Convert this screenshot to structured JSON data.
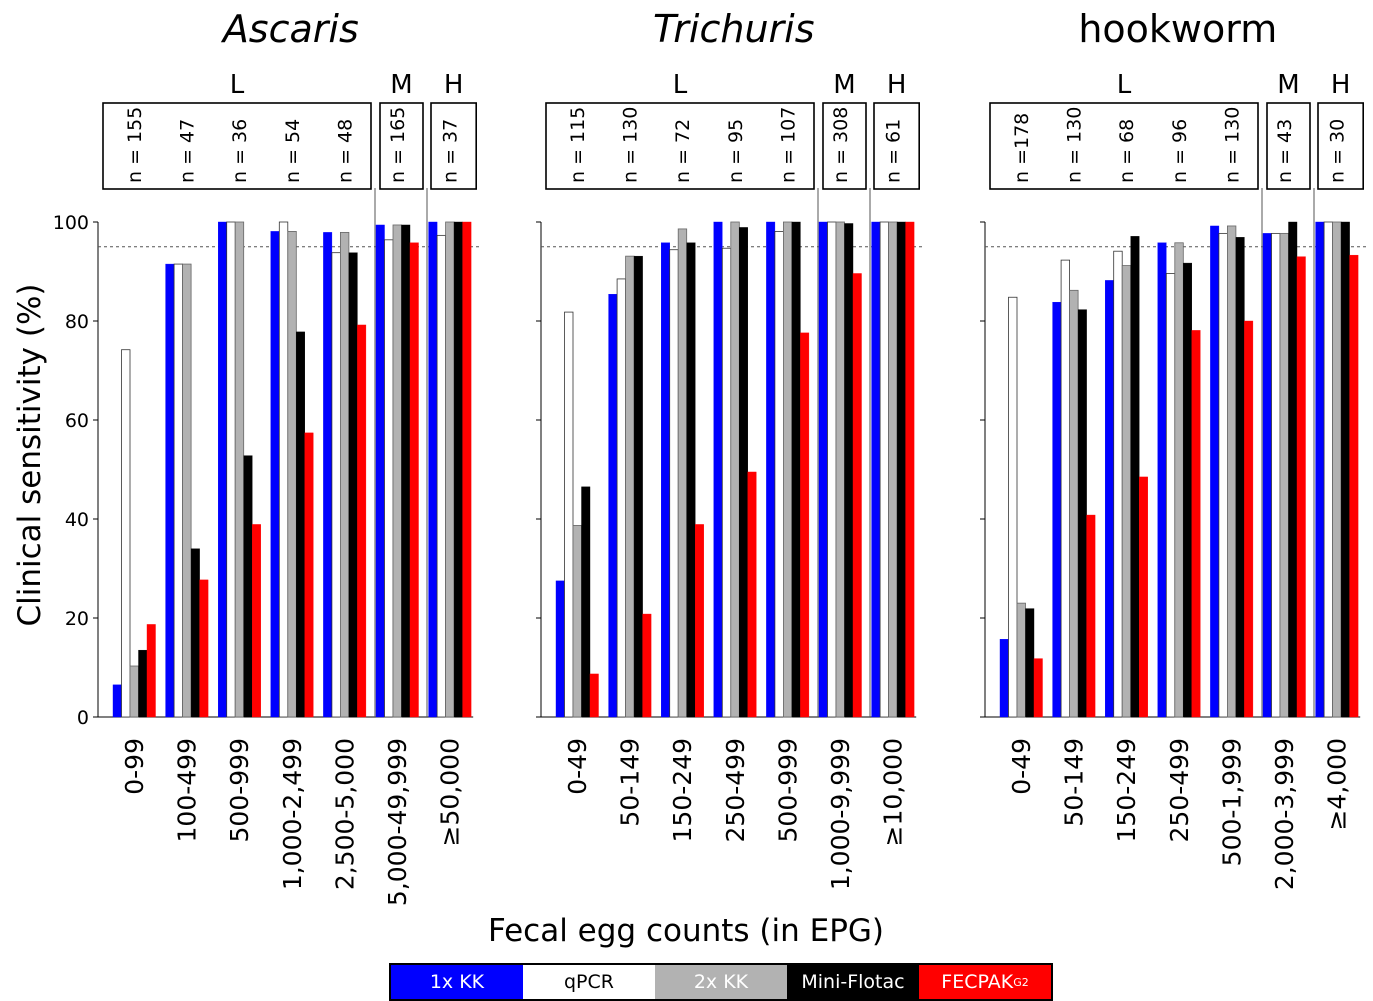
{
  "chart_data": [
    {
      "type": "bar",
      "title": "Ascaris",
      "title_italic": true,
      "categories": [
        "0-99",
        "100-499",
        "500-999",
        "1,000-2,499",
        "2,500-5,000",
        "5,000-49,999",
        "≥50,000"
      ],
      "sample_sizes": [
        "n = 155",
        "n = 47",
        "n = 36",
        "n = 54",
        "n = 48",
        "n = 165",
        "n = 37"
      ],
      "intensity_groups": [
        {
          "label": "L",
          "categories": [
            0,
            1,
            2,
            3,
            4
          ]
        },
        {
          "label": "M",
          "categories": [
            5
          ]
        },
        {
          "label": "H",
          "categories": [
            6
          ]
        }
      ],
      "series": [
        {
          "name": "1x KK",
          "values": [
            6.5,
            91.5,
            100,
            98.1,
            97.9,
            99.4,
            100
          ]
        },
        {
          "name": "qPCR",
          "values": [
            74.2,
            91.5,
            100,
            100,
            93.8,
            96.4,
            97.3
          ]
        },
        {
          "name": "2x KK",
          "values": [
            10.3,
            91.5,
            100,
            98.1,
            97.9,
            99.4,
            100
          ]
        },
        {
          "name": "Mini-Flotac",
          "values": [
            13.5,
            34.0,
            52.8,
            77.8,
            93.8,
            99.4,
            100
          ]
        },
        {
          "name": "FECPAK",
          "values": [
            18.7,
            27.7,
            38.9,
            57.4,
            79.2,
            95.8,
            100
          ]
        }
      ],
      "ylim": [
        0,
        100
      ],
      "reference_line": 95
    },
    {
      "type": "bar",
      "title": "Trichuris",
      "title_italic": true,
      "categories": [
        "0-49",
        "50-149",
        "150-249",
        "250-499",
        "500-999",
        "1,000-9,999",
        "≥10,000"
      ],
      "sample_sizes": [
        "n = 115",
        "n = 130",
        "n = 72",
        "n = 95",
        "n = 107",
        "n = 308",
        "n = 61"
      ],
      "intensity_groups": [
        {
          "label": "L",
          "categories": [
            0,
            1,
            2,
            3,
            4
          ]
        },
        {
          "label": "M",
          "categories": [
            5
          ]
        },
        {
          "label": "H",
          "categories": [
            6
          ]
        }
      ],
      "series": [
        {
          "name": "1x KK",
          "values": [
            27.5,
            85.4,
            95.8,
            100,
            100,
            100,
            100
          ]
        },
        {
          "name": "qPCR",
          "values": [
            81.8,
            88.5,
            94.4,
            94.7,
            98.1,
            100,
            100
          ]
        },
        {
          "name": "2x KK",
          "values": [
            38.7,
            93.1,
            98.6,
            100,
            100,
            100,
            100
          ]
        },
        {
          "name": "Mini-Flotac",
          "values": [
            46.5,
            93.1,
            95.8,
            98.9,
            100,
            99.7,
            100
          ]
        },
        {
          "name": "FECPAK",
          "values": [
            8.7,
            20.8,
            38.9,
            49.5,
            77.6,
            89.6,
            100
          ]
        }
      ],
      "ylim": [
        0,
        100
      ],
      "reference_line": 95
    },
    {
      "type": "bar",
      "title": "hookworm",
      "title_italic": false,
      "categories": [
        "0-49",
        "50-149",
        "150-249",
        "250-499",
        "500-1,999",
        "2,000-3,999",
        "≥4,000"
      ],
      "sample_sizes": [
        "n =178",
        "n = 130",
        "n = 68",
        "n = 96",
        "n = 130",
        "n = 43",
        "n = 30"
      ],
      "intensity_groups": [
        {
          "label": "L",
          "categories": [
            0,
            1,
            2,
            3,
            4
          ]
        },
        {
          "label": "M",
          "categories": [
            5
          ]
        },
        {
          "label": "H",
          "categories": [
            6
          ]
        }
      ],
      "series": [
        {
          "name": "1x KK",
          "values": [
            15.7,
            83.8,
            88.2,
            95.8,
            99.2,
            97.7,
            100
          ]
        },
        {
          "name": "qPCR",
          "values": [
            84.8,
            92.3,
            94.1,
            89.6,
            97.7,
            97.7,
            100
          ]
        },
        {
          "name": "2x KK",
          "values": [
            23.0,
            86.2,
            91.2,
            95.8,
            99.2,
            97.7,
            100
          ]
        },
        {
          "name": "Mini-Flotac",
          "values": [
            21.9,
            82.3,
            97.1,
            91.7,
            96.9,
            100,
            100
          ]
        },
        {
          "name": "FECPAK",
          "values": [
            11.8,
            40.8,
            48.5,
            78.1,
            80.0,
            93.0,
            93.3
          ]
        }
      ],
      "ylim": [
        0,
        100
      ],
      "reference_line": 95
    }
  ],
  "axes": {
    "ylabel": "Clinical sensitivity (%)",
    "xlabel": "Fecal egg counts (in EPG)",
    "yticks": [
      "0",
      "20",
      "40",
      "60",
      "80",
      "100"
    ]
  },
  "legend": {
    "items": [
      {
        "label": "1x KK",
        "sup": "",
        "color": "#0000ff",
        "text_color": "#ffffff"
      },
      {
        "label": "qPCR",
        "sup": "",
        "color": "#ffffff",
        "text_color": "#000000"
      },
      {
        "label": "2x KK",
        "sup": "",
        "color": "#b2b2b2",
        "text_color": "#ffffff"
      },
      {
        "label": "Mini-Flotac",
        "sup": "",
        "color": "#000000",
        "text_color": "#ffffff"
      },
      {
        "label": "FECPAK",
        "sup": "G2",
        "color": "#ff0000",
        "text_color": "#ffffff"
      }
    ]
  }
}
